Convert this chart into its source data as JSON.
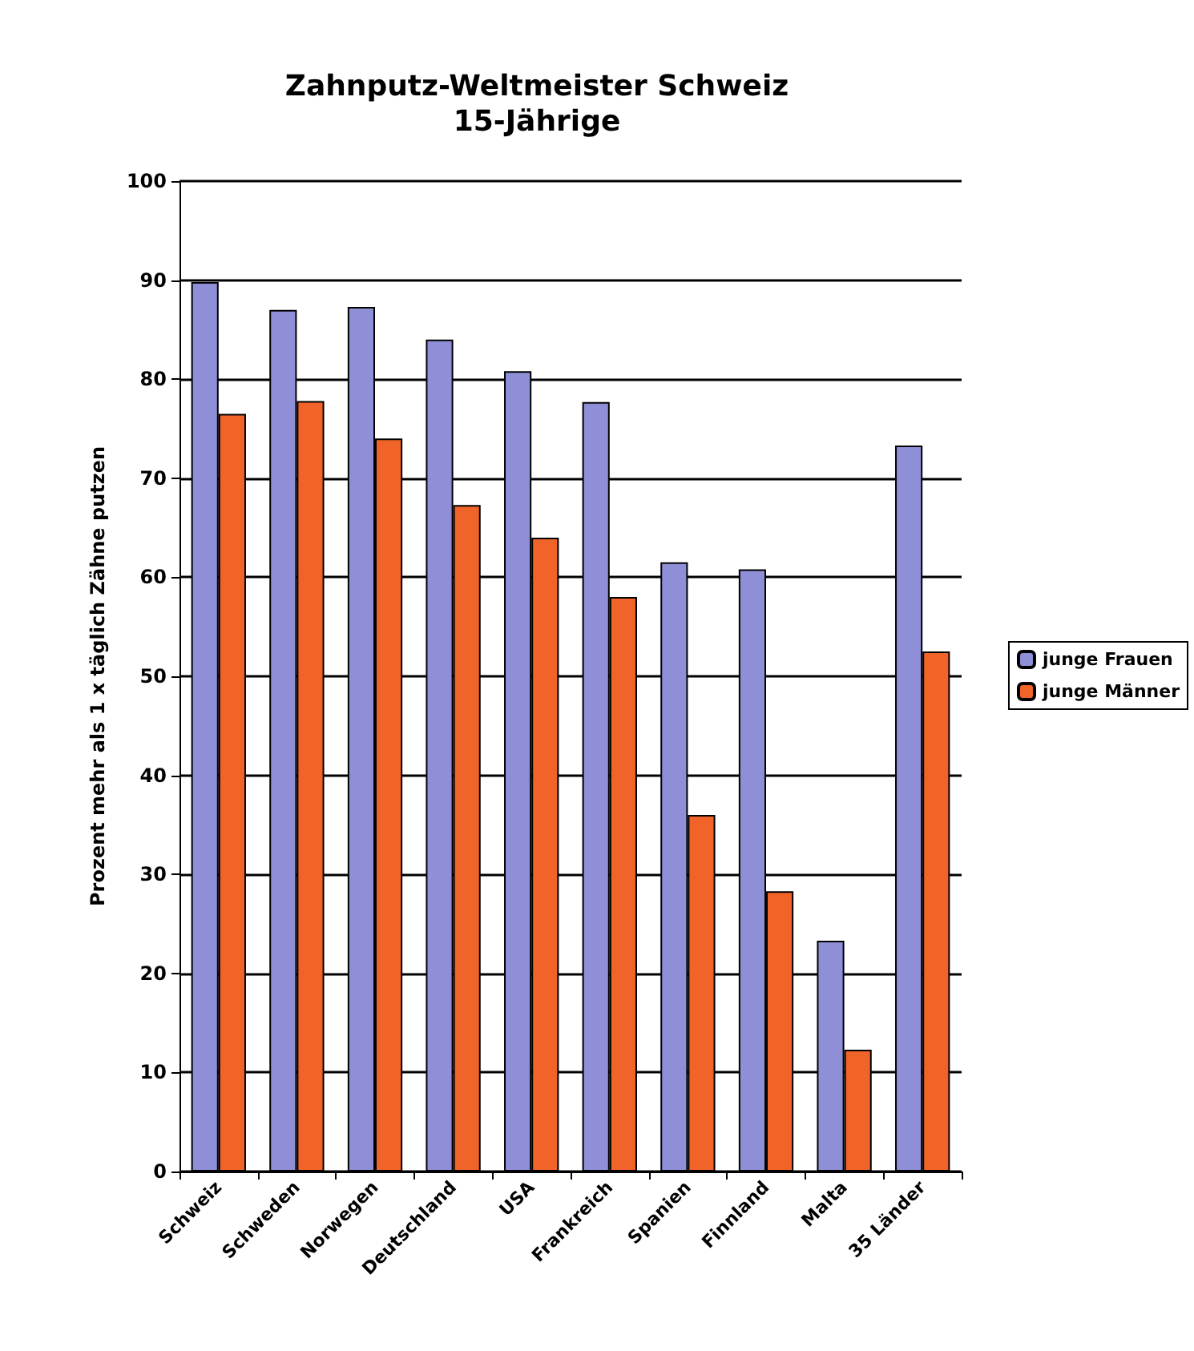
{
  "chart_data": {
    "type": "bar",
    "title": "Zahnputz-Weltmeister Schweiz",
    "subtitle": "15-Jährige",
    "ylabel": "Prozent mehr als 1 x täglich Zähne putzen",
    "categories": [
      "Schweiz",
      "Schweden",
      "Norwegen",
      "Deutschland",
      "USA",
      "Frankreich",
      "Spanien",
      "Finnland",
      "Malta",
      "35 Länder"
    ],
    "series": [
      {
        "name": "junge Frauen",
        "color": "#8f8fd8",
        "values": [
          89.8,
          87,
          87.3,
          84,
          80.8,
          77.7,
          61.5,
          60.8,
          23.3,
          73.3
        ]
      },
      {
        "name": "junge Männer",
        "color": "#f0642a",
        "values": [
          76.5,
          77.8,
          74,
          67.3,
          64,
          58,
          36,
          28.3,
          12.3,
          52.5
        ]
      }
    ],
    "ylim": [
      0,
      100
    ],
    "yticks": [
      0,
      10,
      20,
      30,
      40,
      50,
      60,
      70,
      80,
      90,
      100
    ],
    "grid": "y",
    "legend": "right"
  }
}
